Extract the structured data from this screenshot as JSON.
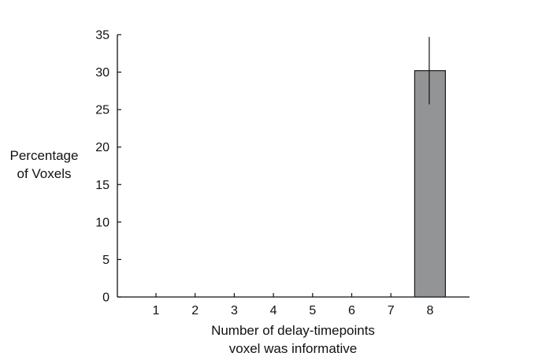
{
  "chart_data": {
    "type": "bar",
    "categories": [
      "1",
      "2",
      "3",
      "4",
      "5",
      "6",
      "7",
      "8"
    ],
    "values": [
      0,
      0,
      0,
      0,
      0,
      0,
      0,
      30.2
    ],
    "error": [
      null,
      null,
      null,
      null,
      null,
      null,
      null,
      4.5
    ],
    "xlabel_lines": [
      "Number of delay-timepoints",
      "voxel was informative"
    ],
    "ylabel_lines": [
      "Percentage",
      "of Voxels"
    ],
    "ylim": [
      0,
      35
    ],
    "yticks": [
      0,
      5,
      10,
      15,
      20,
      25,
      30,
      35
    ],
    "grid": false,
    "bar_color": "#939496",
    "bar_edge_color": "#1a1a1a"
  }
}
